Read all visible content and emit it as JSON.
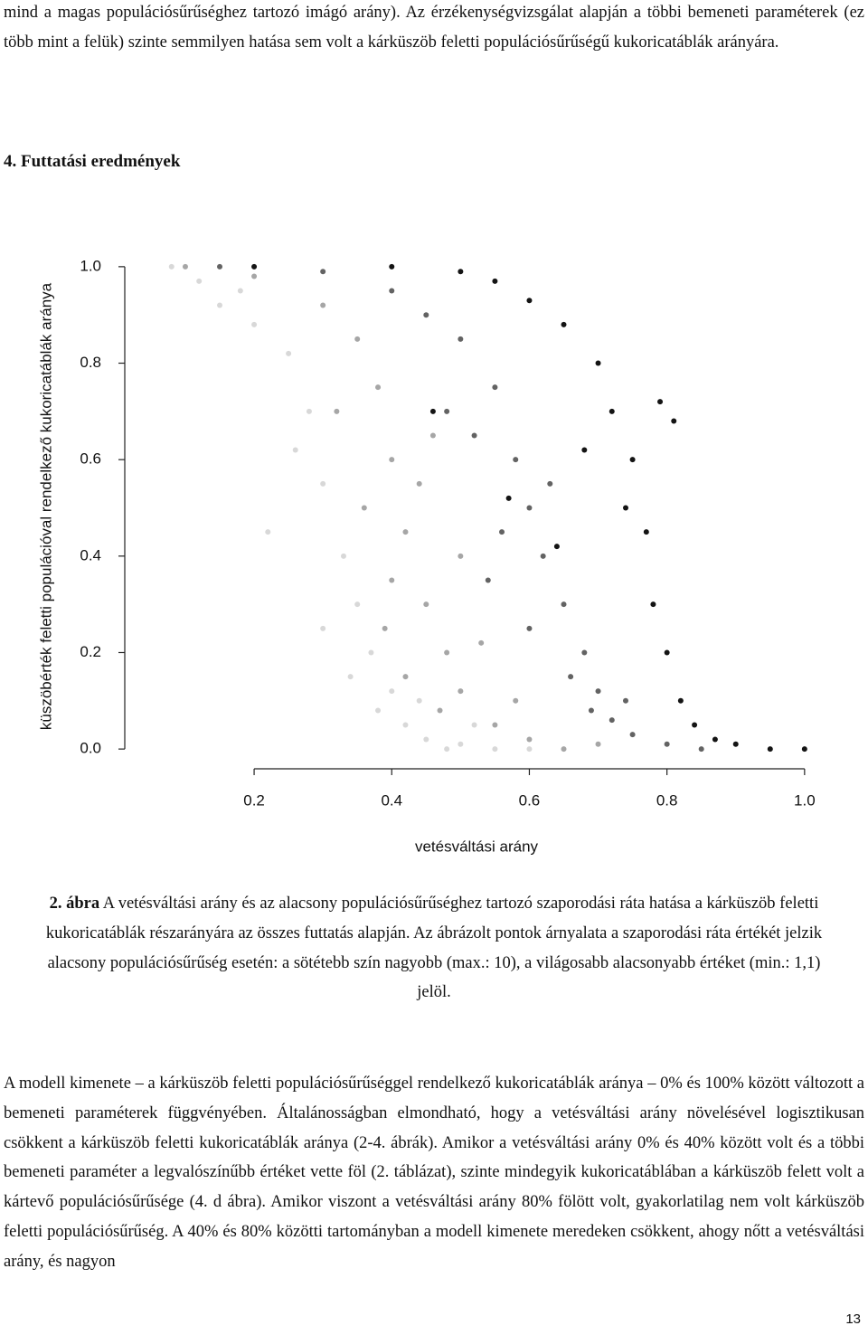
{
  "top_paragraph": "mind a magas populációsűrűséghez tartozó imágó arány). Az érzékenységvizsgálat alapján a többi bemeneti paraméterek (ez több mint a felük) szinte semmilyen hatása sem volt a kárküszöb feletti populációsűrűségű kukoricatáblák arányára.",
  "heading": "4. Futtatási eredmények",
  "chart_data": {
    "type": "scatter",
    "xlabel": "vetésváltási arány",
    "ylabel": "küszöbérték feletti populációval rendelkező kukoricatáblák aránya",
    "xlim": [
      0.012,
      1.037
    ],
    "ylim": [
      -0.041,
      1.041
    ],
    "xticks": [
      0.2,
      0.4,
      0.6,
      0.8,
      {
        "value": 1,
        "label": "1.0"
      }
    ],
    "yticks": [
      {
        "value": 0,
        "label": "0.0"
      },
      0.2,
      0.4,
      0.6,
      0.8,
      {
        "value": 1,
        "label": "1.0"
      }
    ],
    "series": [
      {
        "color": "#d8d8d8",
        "x": [
          0.08,
          0.12,
          0.15,
          0.2,
          0.25,
          0.28,
          0.3,
          0.33,
          0.35,
          0.37,
          0.4,
          0.42,
          0.45,
          0.48,
          0.5,
          0.55,
          0.6,
          0.22,
          0.3,
          0.38,
          0.26,
          0.18,
          0.34,
          0.44,
          0.52
        ],
        "y": [
          1.0,
          0.97,
          0.92,
          0.88,
          0.82,
          0.7,
          0.55,
          0.4,
          0.3,
          0.2,
          0.12,
          0.05,
          0.02,
          0.0,
          0.01,
          0.0,
          0.0,
          0.45,
          0.25,
          0.08,
          0.62,
          0.95,
          0.15,
          0.1,
          0.05
        ]
      },
      {
        "color": "#a6a6a6",
        "x": [
          0.1,
          0.2,
          0.3,
          0.35,
          0.38,
          0.4,
          0.42,
          0.45,
          0.48,
          0.5,
          0.55,
          0.6,
          0.65,
          0.4,
          0.44,
          0.5,
          0.36,
          0.47,
          0.53,
          0.58,
          0.42,
          0.7,
          0.32,
          0.46,
          0.39
        ],
        "y": [
          1.0,
          0.98,
          0.92,
          0.85,
          0.75,
          0.6,
          0.45,
          0.3,
          0.2,
          0.12,
          0.05,
          0.02,
          0.0,
          0.35,
          0.55,
          0.4,
          0.5,
          0.08,
          0.22,
          0.1,
          0.15,
          0.01,
          0.7,
          0.65,
          0.25
        ]
      },
      {
        "color": "#636363",
        "x": [
          0.15,
          0.3,
          0.4,
          0.45,
          0.5,
          0.55,
          0.58,
          0.6,
          0.62,
          0.65,
          0.68,
          0.7,
          0.72,
          0.75,
          0.8,
          0.85,
          0.52,
          0.56,
          0.63,
          0.66,
          0.6,
          0.48,
          0.54,
          0.69,
          0.74
        ],
        "y": [
          1.0,
          0.99,
          0.95,
          0.9,
          0.85,
          0.75,
          0.6,
          0.5,
          0.4,
          0.3,
          0.2,
          0.12,
          0.06,
          0.03,
          0.01,
          0.0,
          0.65,
          0.45,
          0.55,
          0.15,
          0.25,
          0.7,
          0.35,
          0.08,
          0.1
        ]
      },
      {
        "color": "#141414",
        "x": [
          0.2,
          0.4,
          0.5,
          0.55,
          0.6,
          0.65,
          0.7,
          0.72,
          0.75,
          0.77,
          0.78,
          0.8,
          0.82,
          0.84,
          0.87,
          0.9,
          0.95,
          1.0,
          0.74,
          0.79,
          0.81,
          0.68,
          0.57,
          0.46,
          0.64
        ],
        "y": [
          1.0,
          1.0,
          0.99,
          0.97,
          0.93,
          0.88,
          0.8,
          0.7,
          0.6,
          0.45,
          0.3,
          0.2,
          0.1,
          0.05,
          0.02,
          0.01,
          0.0,
          0.0,
          0.5,
          0.72,
          0.68,
          0.62,
          0.52,
          0.7,
          0.42
        ]
      }
    ]
  },
  "caption": {
    "label": "2. ábra",
    "text": "A vetésváltási arány és az alacsony populációsűrűséghez tartozó szaporodási ráta hatása a kárküszöb feletti kukoricatáblák részarányára az összes futtatás alapján. Az ábrázolt pontok árnyalata a szaporodási ráta értékét jelzik alacsony populációsűrűség esetén: a sötétebb szín nagyobb (max.: 10), a világosabb alacsonyabb értéket (min.: 1,1) jelöl."
  },
  "body_paragraph": "A modell kimenete – a kárküszöb feletti populációsűrűséggel rendelkező kukoricatáblák aránya – 0% és 100% között változott a bemeneti paraméterek függvényében. Általánosságban elmondható, hogy a vetésváltási arány növelésével logisztikusan csökkent a kárküszöb feletti kukoricatáblák aránya (2-4. ábrák). Amikor a vetésváltási arány 0% és 40% között volt és a többi bemeneti paraméter a legvalószínűbb értéket vette föl (2. táblázat), szinte mindegyik kukoricatáblában a kárküszöb felett volt a kártevő populációsűrűsége (4. d ábra). Amikor viszont a vetésváltási arány 80% fölött volt, gyakorlatilag nem volt kárküszöb feletti populációsűrűség. A 40% és 80% közötti tartományban a modell kimenete meredeken csökkent, ahogy nőtt a vetésváltási arány, és nagyon",
  "page_number": "13"
}
